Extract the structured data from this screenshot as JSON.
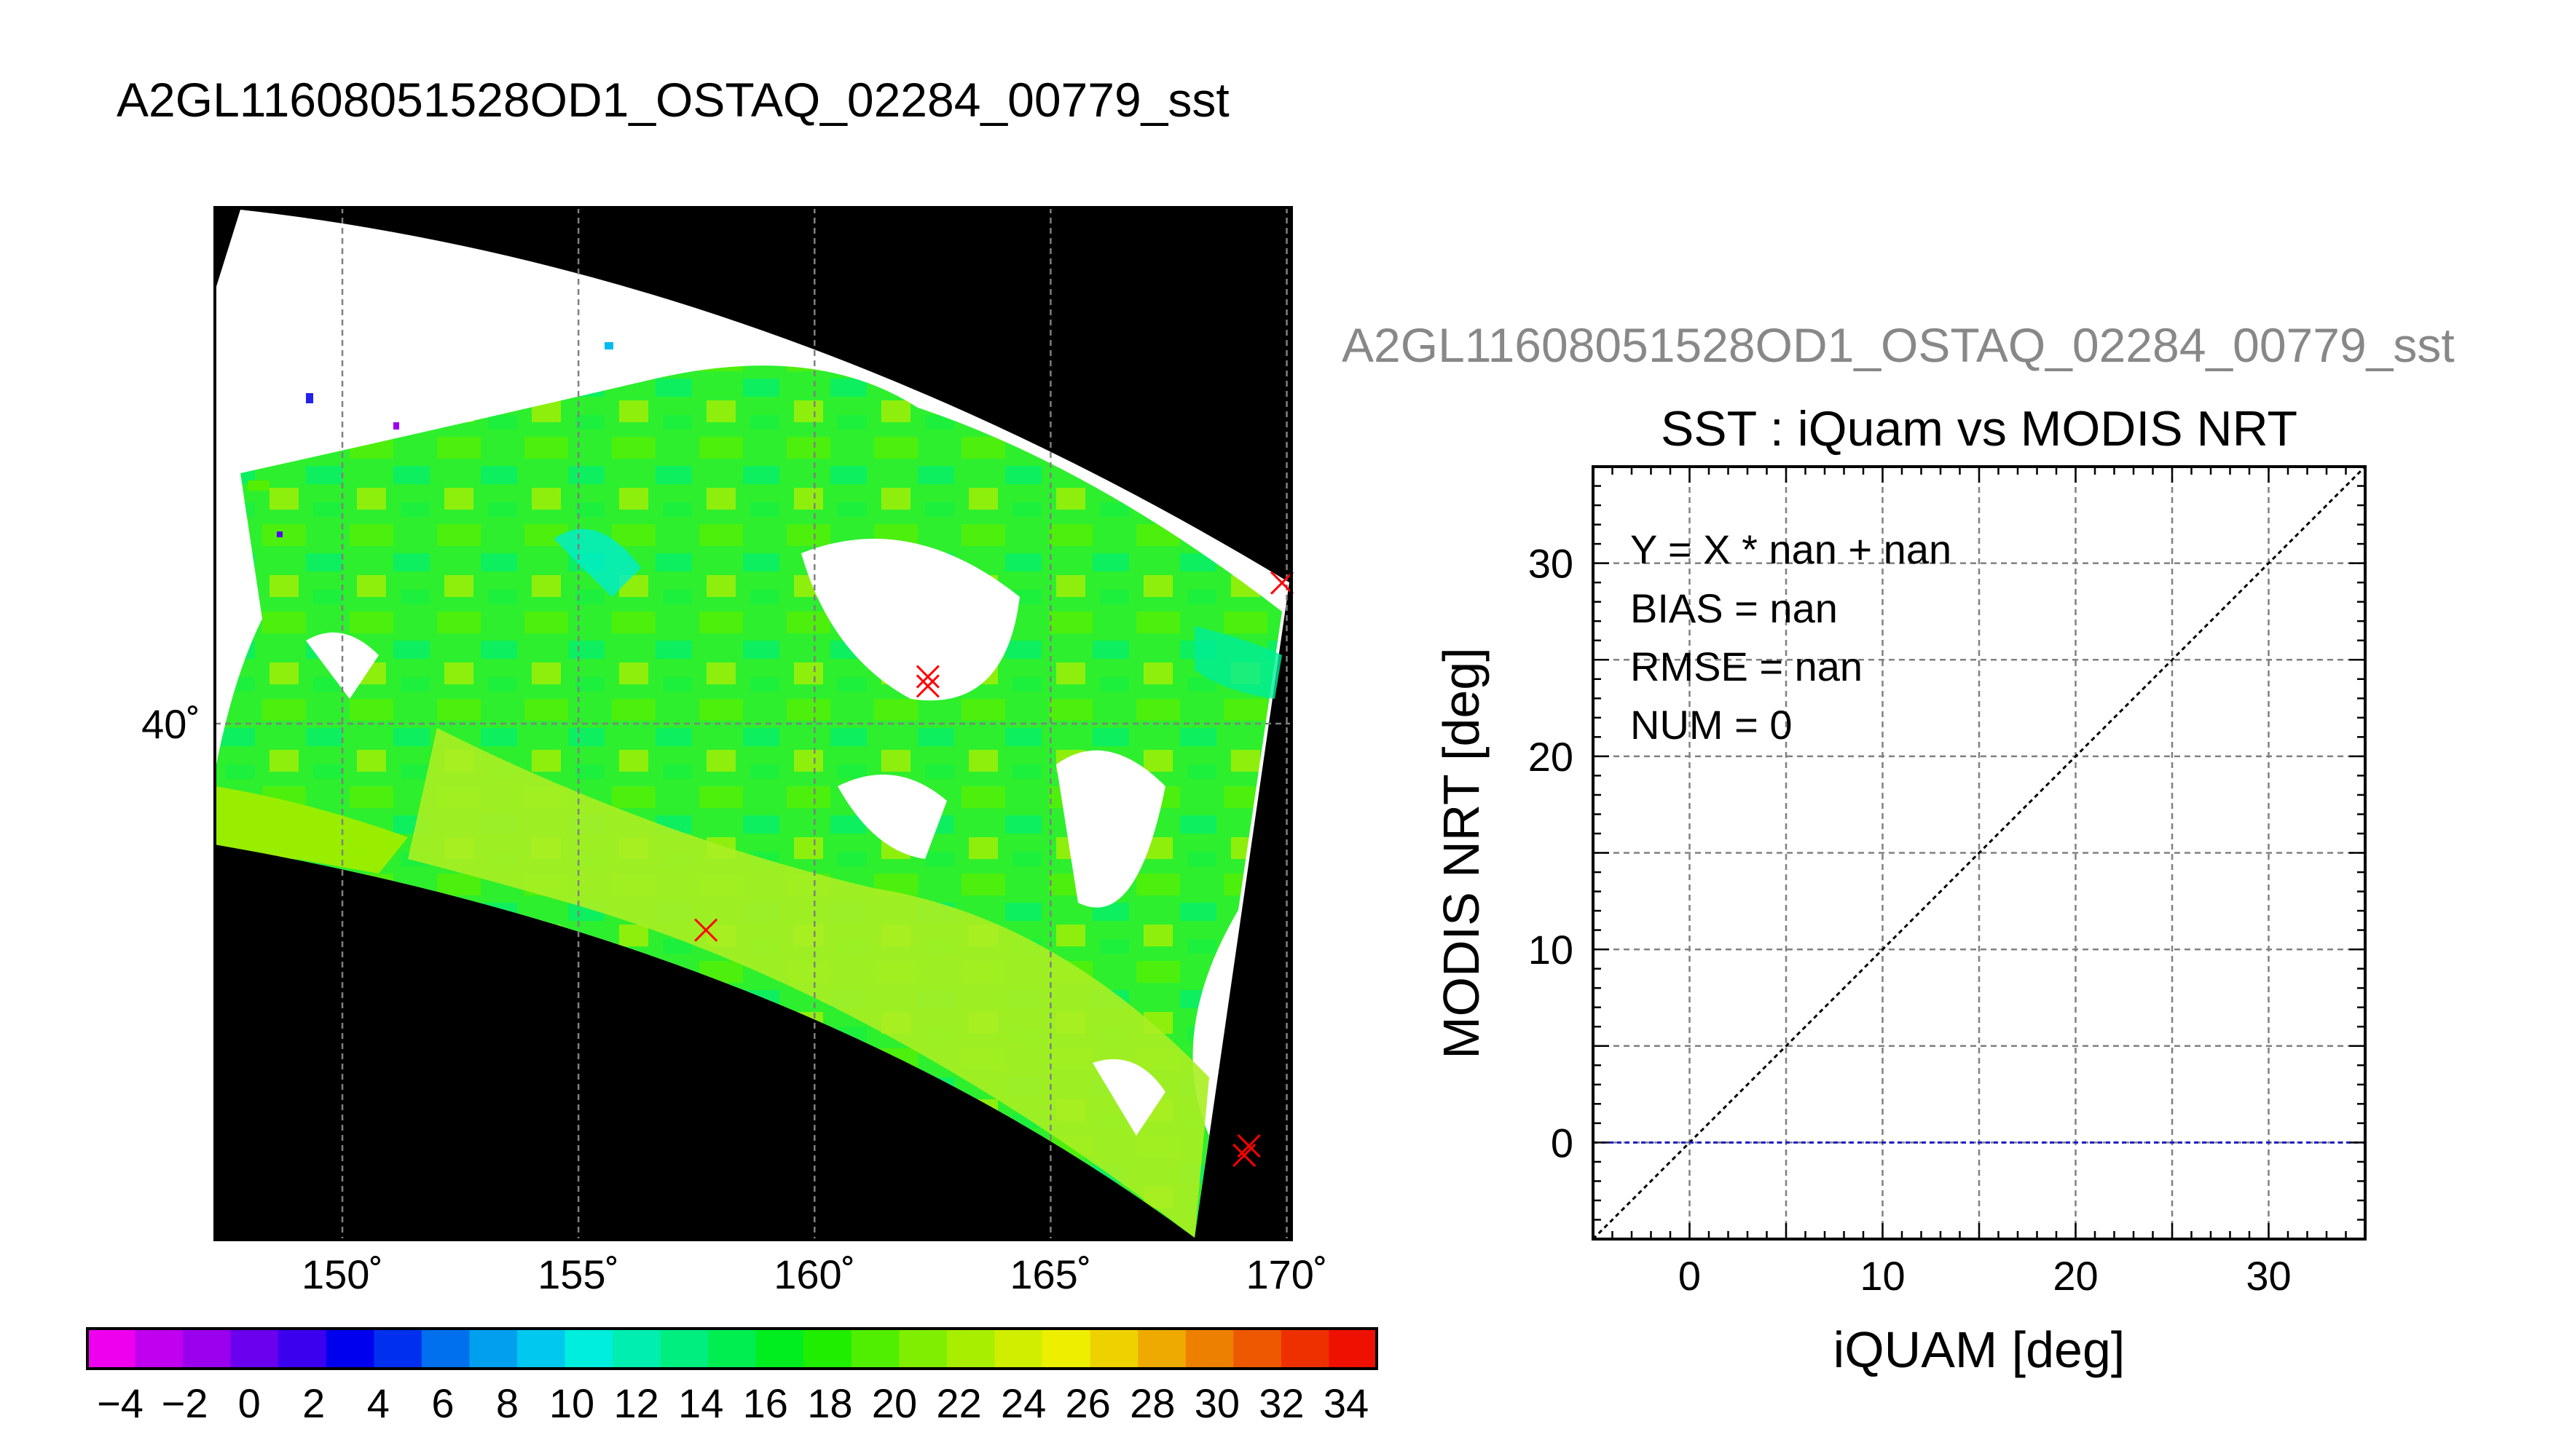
{
  "header": {
    "title": "A2GL11608051528OD1_OSTAQ_02284_00779_sst"
  },
  "map": {
    "lon_ticks": [
      "150˚",
      "155˚",
      "160˚",
      "165˚",
      "170˚"
    ],
    "lat_ticks": [
      "40˚"
    ],
    "lon_values": [
      150,
      155,
      160,
      165,
      170
    ],
    "lat_values": [
      40
    ],
    "lon_range": [
      147.3,
      170.1
    ],
    "lat_range": [
      34.5,
      45.5
    ],
    "colors": {
      "background": "#000000",
      "swath_cloud": "#ffffff",
      "markers": "#ff0000"
    },
    "match_points": [
      {
        "lon": 157.7,
        "lat": 37.8
      },
      {
        "lon": 162.4,
        "lat": 40.4
      },
      {
        "lon": 162.4,
        "lat": 40.5
      },
      {
        "lon": 169.9,
        "lat": 41.5
      },
      {
        "lon": 169.1,
        "lat": 35.4
      },
      {
        "lon": 169.2,
        "lat": 35.5
      }
    ]
  },
  "colorbar": {
    "tick_labels": [
      "−4",
      "−2",
      "0",
      "2",
      "4",
      "6",
      "8",
      "10",
      "12",
      "14",
      "16",
      "18",
      "20",
      "22",
      "24",
      "26",
      "28",
      "30",
      "32",
      "34"
    ],
    "colors": [
      "#ee00ee",
      "#c000ee",
      "#9a00ee",
      "#6a00ee",
      "#3b00ee",
      "#0000ee",
      "#0030ee",
      "#0070ee",
      "#00a0ee",
      "#00c8ee",
      "#00eede",
      "#00eeb0",
      "#00ee80",
      "#00ee50",
      "#00ee20",
      "#20ee00",
      "#50ee00",
      "#80ee00",
      "#a8ee00",
      "#d0ee00",
      "#eeee00",
      "#eed200",
      "#eeaa00",
      "#ee8000",
      "#ee5800",
      "#ee3000",
      "#ee1000"
    ]
  },
  "scatter": {
    "figure_title": "A2GL11608051528OD1_OSTAQ_02284_00779_sst",
    "stats": [
      "Y = X * nan + nan",
      "BIAS = nan",
      "RMSE = nan",
      "NUM = 0"
    ]
  },
  "chart_data": {
    "type": "scatter",
    "title": "SST : iQuam vs MODIS NRT",
    "xlabel": "iQUAM [deg]",
    "ylabel": "MODIS NRT [deg]",
    "xlim": [
      -5,
      35
    ],
    "ylim": [
      -5,
      35
    ],
    "xticks": [
      0,
      10,
      20,
      30
    ],
    "yticks": [
      0,
      10,
      20,
      30
    ],
    "grid": true,
    "x": [],
    "y": [],
    "reference_lines": [
      {
        "kind": "one-to-one",
        "color": "#000000"
      },
      {
        "kind": "horizontal",
        "y": 0,
        "color": "#1a1acc"
      }
    ]
  }
}
